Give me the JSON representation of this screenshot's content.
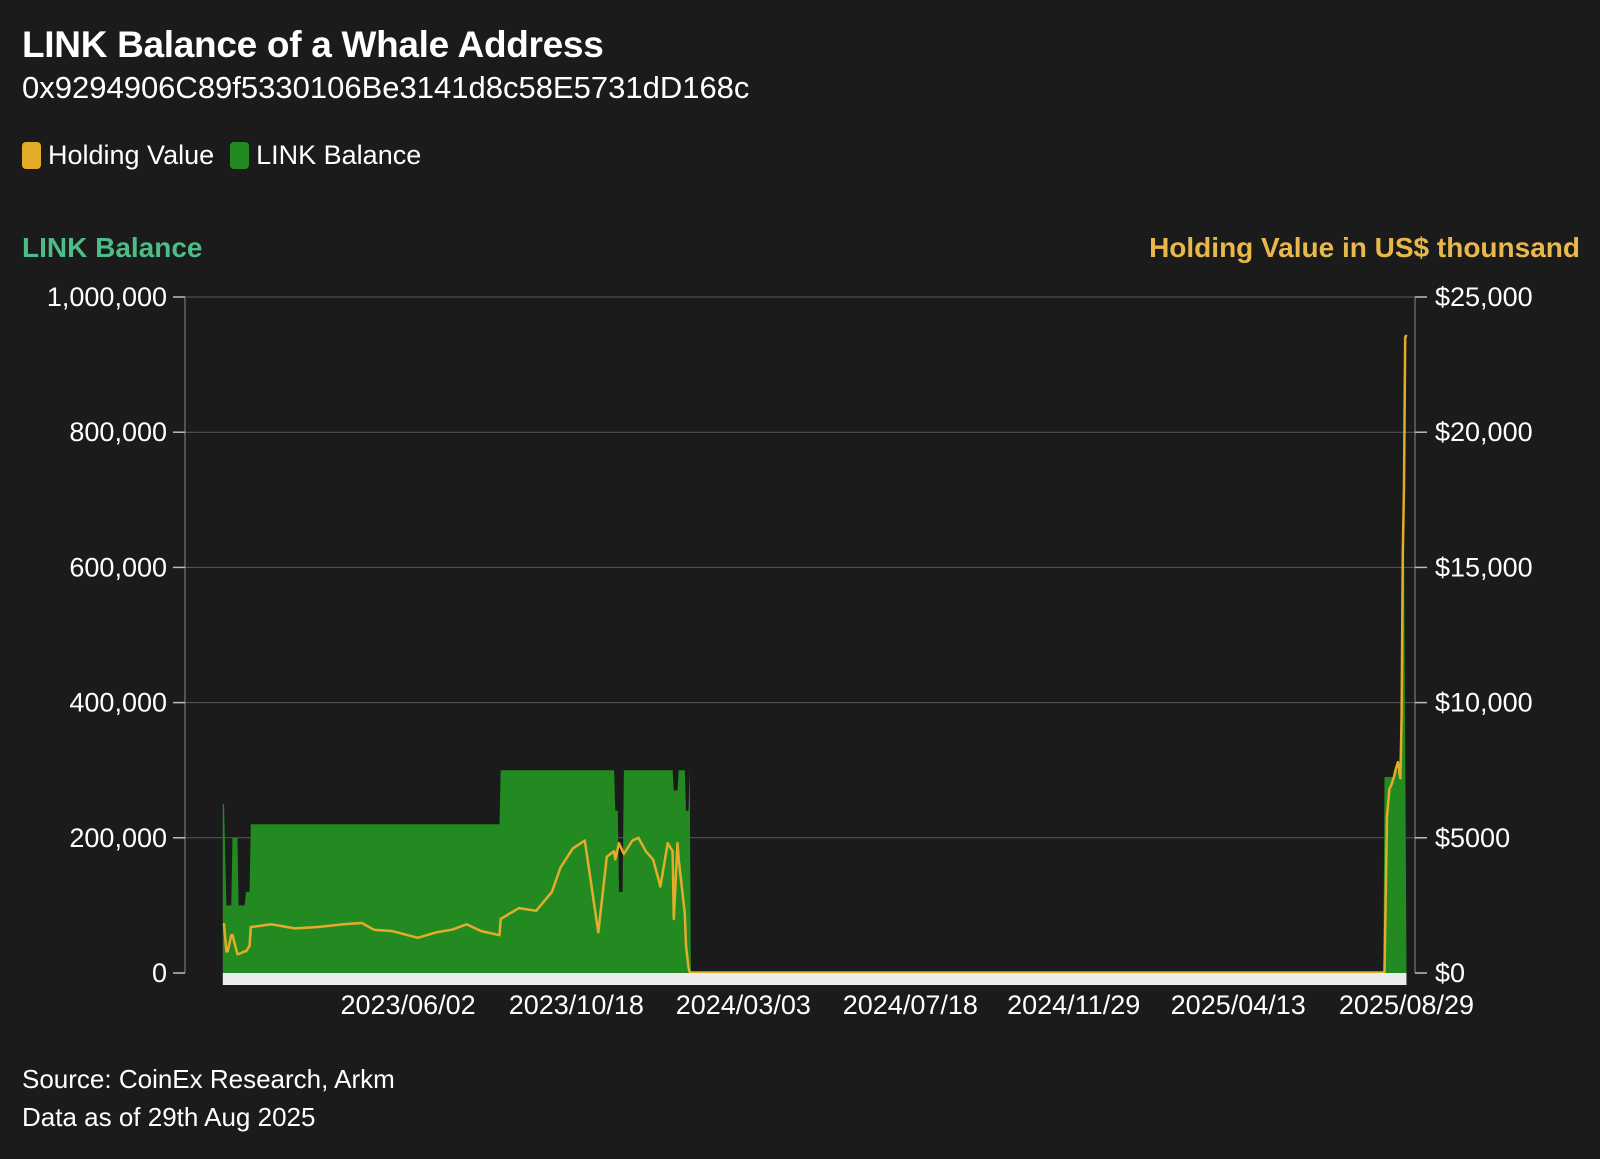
{
  "chart_data": {
    "type": "area",
    "title": "LINK Balance of a Whale Address",
    "subtitle": "0x9294906C89f5330106Be3141d8c58E5731dD168c",
    "legend": [
      {
        "name": "Holding Value",
        "color": "#e3ad2a"
      },
      {
        "name": "LINK Balance",
        "color": "#238a22"
      }
    ],
    "legend_placement": "top-left",
    "ylabel_left": "LINK Balance",
    "ylabel_right": "Holding Value in US$ thounsand",
    "ylabel_left_color": "#4dbd87",
    "ylabel_right_color": "#e8b84a",
    "ylim_left": [
      0,
      1000000
    ],
    "ylim_right": [
      0,
      25000
    ],
    "yticks_left": [
      "0",
      "200,000",
      "400,000",
      "600,000",
      "800,000",
      "1,000,000"
    ],
    "yticks_left_values": [
      0,
      200000,
      400000,
      600000,
      800000,
      1000000
    ],
    "yticks_right": [
      "$0",
      "$5000",
      "$10,000",
      "$15,000",
      "$20,000",
      "$25,000"
    ],
    "yticks_right_values": [
      0,
      5000,
      10000,
      15000,
      20000,
      25000
    ],
    "xlim": [
      "2022-12-01",
      "2025-09-05"
    ],
    "xticks": [
      "2023/06/02",
      "2023/10/18",
      "2024/03/03",
      "2024/07/18",
      "2024/11/29",
      "2025/04/13",
      "2025/08/29"
    ],
    "grid": true,
    "series": [
      {
        "name": "LINK Balance",
        "axis": "left",
        "color": "#238a22",
        "x": [
          "2023-01-01",
          "2023-01-02",
          "2023-01-04",
          "2023-01-05",
          "2023-01-08",
          "2023-01-09",
          "2023-01-13",
          "2023-01-14",
          "2023-01-19",
          "2023-01-20",
          "2023-01-23",
          "2023-01-24",
          "2023-01-28",
          "2023-01-29",
          "2023-08-16",
          "2023-08-17",
          "2023-11-18",
          "2023-11-19",
          "2023-11-21",
          "2023-11-22",
          "2023-11-25",
          "2023-11-26",
          "2024-01-05",
          "2024-01-06",
          "2024-01-09",
          "2024-01-10",
          "2024-01-15",
          "2024-01-16",
          "2024-01-18",
          "2024-01-19",
          "2024-01-20",
          "2025-08-10",
          "2025-08-11",
          "2025-08-19",
          "2025-08-20",
          "2025-08-24",
          "2025-08-25",
          "2025-08-26",
          "2025-08-27",
          "2025-08-29"
        ],
        "values": [
          250000,
          250000,
          100000,
          100000,
          100000,
          200000,
          200000,
          100000,
          100000,
          120000,
          120000,
          220000,
          220000,
          220000,
          220000,
          300000,
          300000,
          240000,
          240000,
          120000,
          120000,
          300000,
          300000,
          270000,
          270000,
          300000,
          300000,
          240000,
          240000,
          300000,
          0,
          0,
          290000,
          290000,
          300000,
          300000,
          600000,
          700000,
          650000,
          0
        ]
      },
      {
        "name": "Holding Value",
        "axis": "right",
        "color": "#e3ad2a",
        "x": [
          "2023-01-01",
          "2023-01-02",
          "2023-01-04",
          "2023-01-05",
          "2023-01-08",
          "2023-01-09",
          "2023-01-13",
          "2023-01-14",
          "2023-01-19",
          "2023-01-20",
          "2023-01-23",
          "2023-01-24",
          "2023-02-10",
          "2023-03-01",
          "2023-03-20",
          "2023-04-10",
          "2023-04-25",
          "2023-05-05",
          "2023-05-20",
          "2023-06-10",
          "2023-06-25",
          "2023-07-08",
          "2023-07-20",
          "2023-08-01",
          "2023-08-16",
          "2023-08-17",
          "2023-09-01",
          "2023-09-15",
          "2023-09-28",
          "2023-10-05",
          "2023-10-15",
          "2023-10-25",
          "2023-11-05",
          "2023-11-12",
          "2023-11-18",
          "2023-11-19",
          "2023-11-21",
          "2023-11-22",
          "2023-11-25",
          "2023-11-26",
          "2023-12-03",
          "2023-12-08",
          "2023-12-14",
          "2023-12-20",
          "2023-12-26",
          "2024-01-01",
          "2024-01-05",
          "2024-01-06",
          "2024-01-09",
          "2024-01-10",
          "2024-01-15",
          "2024-01-16",
          "2024-01-18",
          "2024-01-19",
          "2024-01-20",
          "2024-01-21",
          "2025-08-10",
          "2025-08-11",
          "2025-08-13",
          "2025-08-15",
          "2025-08-17",
          "2025-08-19",
          "2025-08-20",
          "2025-08-22",
          "2025-08-24",
          "2025-08-25",
          "2025-08-26",
          "2025-08-27",
          "2025-08-28",
          "2025-08-29"
        ],
        "values": [
          1800,
          1800,
          800,
          800,
          1400,
          1400,
          700,
          700,
          800,
          800,
          1000,
          1700,
          1800,
          1650,
          1700,
          1800,
          1850,
          1600,
          1550,
          1300,
          1500,
          1600,
          1800,
          1550,
          1400,
          2000,
          2400,
          2300,
          3000,
          3900,
          4600,
          4900,
          1500,
          4300,
          4500,
          4200,
          4600,
          4800,
          4500,
          4400,
          4900,
          5000,
          4500,
          4200,
          3200,
          4800,
          4500,
          2000,
          4800,
          4200,
          2200,
          1000,
          200,
          20,
          20,
          20,
          20,
          20,
          5800,
          6800,
          7000,
          7300,
          7500,
          7800,
          7200,
          9500,
          15500,
          18000,
          23500,
          23600
        ]
      }
    ]
  },
  "footer": {
    "source": "Source: CoinEx Research, Arkm",
    "date_note": "Data as of 29th Aug 2025"
  }
}
